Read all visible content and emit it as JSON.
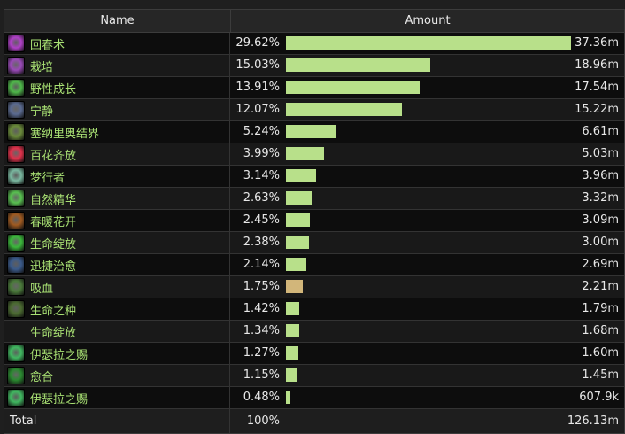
{
  "headers": {
    "name": "Name",
    "amount": "Amount"
  },
  "bar_color": "#b8e08a",
  "rows": [
    {
      "name": "回春术",
      "percent": "29.62%",
      "fraction": 29.62,
      "value": "37.36m",
      "icon": "rejuvenation-icon",
      "icon_color": "#b040c8",
      "bar_color": "#b8e08a"
    },
    {
      "name": "栽培",
      "percent": "15.03%",
      "fraction": 15.03,
      "value": "18.96m",
      "icon": "cultivation-icon",
      "icon_color": "#9a4ab8",
      "bar_color": "#b8e08a"
    },
    {
      "name": "野性成长",
      "percent": "13.91%",
      "fraction": 13.91,
      "value": "17.54m",
      "icon": "wild-growth-icon",
      "icon_color": "#4fb84a",
      "bar_color": "#b8e08a"
    },
    {
      "name": "宁静",
      "percent": "12.07%",
      "fraction": 12.07,
      "value": "15.22m",
      "icon": "tranquility-icon",
      "icon_color": "#5a6a90",
      "bar_color": "#b8e08a"
    },
    {
      "name": "塞纳里奥结界",
      "percent": "5.24%",
      "fraction": 5.24,
      "value": "6.61m",
      "icon": "cenarion-ward-icon",
      "icon_color": "#6a8a3a",
      "bar_color": "#b8e08a"
    },
    {
      "name": "百花齐放",
      "percent": "3.99%",
      "fraction": 3.99,
      "value": "5.03m",
      "icon": "efflorescence-icon",
      "icon_color": "#e0304a",
      "bar_color": "#b8e08a"
    },
    {
      "name": "梦行者",
      "percent": "3.14%",
      "fraction": 3.14,
      "value": "3.96m",
      "icon": "dreamwalker-icon",
      "icon_color": "#7ab8a0",
      "bar_color": "#b8e08a"
    },
    {
      "name": "自然精华",
      "percent": "2.63%",
      "fraction": 2.63,
      "value": "3.32m",
      "icon": "essence-of-nature-icon",
      "icon_color": "#58c050",
      "bar_color": "#b8e08a"
    },
    {
      "name": "春暖花开",
      "percent": "2.45%",
      "fraction": 2.45,
      "value": "3.09m",
      "icon": "spring-blossoms-icon",
      "icon_color": "#a05a20",
      "bar_color": "#b8e08a"
    },
    {
      "name": "生命绽放",
      "percent": "2.38%",
      "fraction": 2.38,
      "value": "3.00m",
      "icon": "lifebloom-icon",
      "icon_color": "#3ab83a",
      "bar_color": "#b8e08a"
    },
    {
      "name": "迅捷治愈",
      "percent": "2.14%",
      "fraction": 2.14,
      "value": "2.69m",
      "icon": "swiftmend-icon",
      "icon_color": "#3a5a8a",
      "bar_color": "#b8e08a"
    },
    {
      "name": "吸血",
      "percent": "1.75%",
      "fraction": 1.75,
      "value": "2.21m",
      "icon": "leech-icon",
      "icon_color": "#4a7a3a",
      "bar_color": "#d2b67a"
    },
    {
      "name": "生命之种",
      "percent": "1.42%",
      "fraction": 1.42,
      "value": "1.79m",
      "icon": "living-seed-icon",
      "icon_color": "#4a6a30",
      "bar_color": "#b8e08a"
    },
    {
      "name": "生命绽放",
      "percent": "1.34%",
      "fraction": 1.34,
      "value": "1.68m",
      "icon": "",
      "icon_color": "",
      "bar_color": "#b8e08a"
    },
    {
      "name": "伊瑟拉之赐",
      "percent": "1.27%",
      "fraction": 1.27,
      "value": "1.60m",
      "icon": "ysera-gift-icon",
      "icon_color": "#40b860",
      "bar_color": "#b8e08a"
    },
    {
      "name": "愈合",
      "percent": "1.15%",
      "fraction": 1.15,
      "value": "1.45m",
      "icon": "regrowth-icon",
      "icon_color": "#2a8a30",
      "bar_color": "#b8e08a"
    },
    {
      "name": "伊瑟拉之赐",
      "percent": "0.48%",
      "fraction": 0.48,
      "value": "607.9k",
      "icon": "ysera-gift-icon",
      "icon_color": "#40b860",
      "bar_color": "#b8e08a"
    }
  ],
  "total": {
    "label": "Total",
    "percent": "100%",
    "value": "126.13m"
  }
}
